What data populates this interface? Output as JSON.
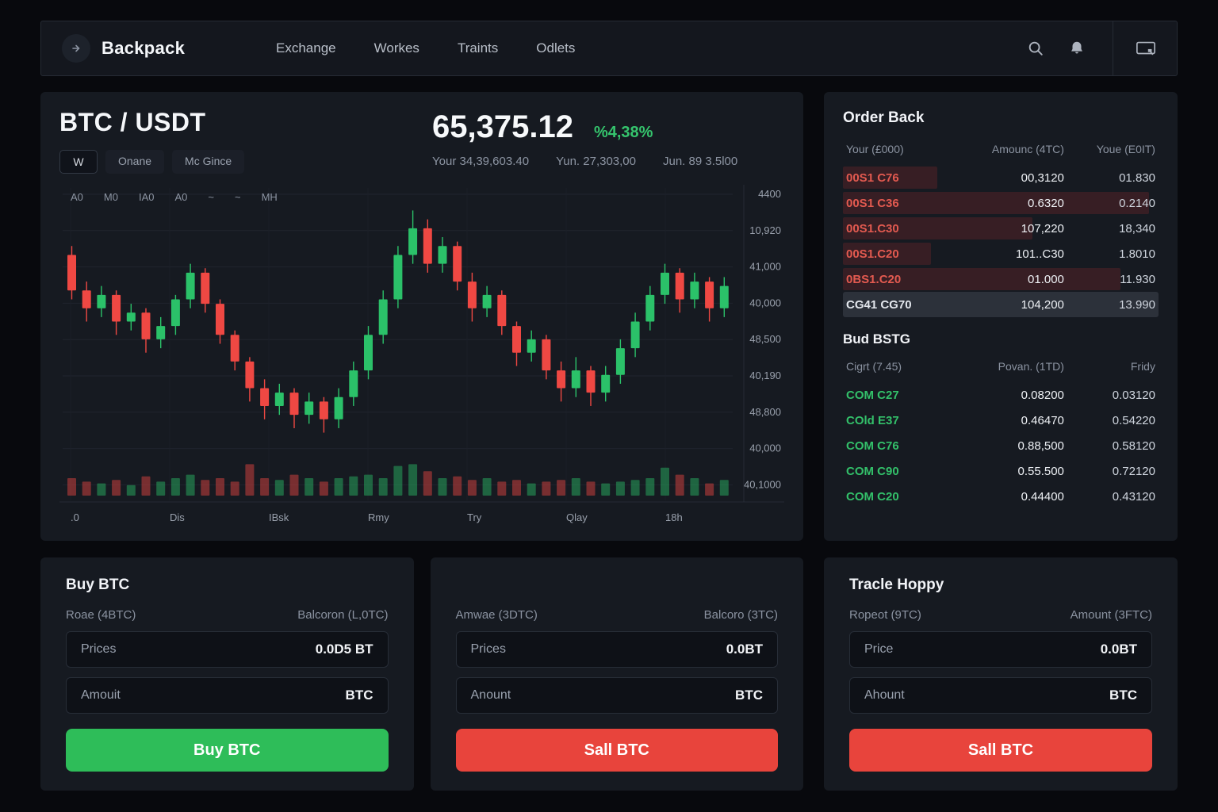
{
  "nav": {
    "brand": "Backpack",
    "items": [
      {
        "label": "Exchange"
      },
      {
        "label": "Workes"
      },
      {
        "label": "Traints"
      },
      {
        "label": "Odlets"
      }
    ]
  },
  "market": {
    "pair": "BTC / USDT",
    "price": "65,375.12",
    "change": "%4,38%",
    "stats": [
      "Your 34,39,603.40",
      "Yun. 27,303,00",
      "Jun. 89 3.5l00"
    ],
    "tabs": [
      "W",
      "Onane",
      "Mc Gince"
    ],
    "indicators": [
      "A0",
      "M0",
      "IA0",
      "A0",
      "~",
      "~",
      "MH"
    ]
  },
  "chart_data": {
    "type": "candlestick",
    "x_labels": [
      ".0",
      "Dis",
      "IBsk",
      "Rmy",
      "Try",
      "Qlay",
      "18h"
    ],
    "y_labels": [
      "4400",
      "10,920",
      "41,000",
      "40,000",
      "48,500",
      "40,190",
      "48,800",
      "40,000",
      "40,1000"
    ],
    "candles": [
      [
        78,
        70,
        80,
        68
      ],
      [
        70,
        66,
        72,
        63
      ],
      [
        66,
        69,
        71,
        64
      ],
      [
        69,
        63,
        70,
        60
      ],
      [
        63,
        65,
        67,
        61
      ],
      [
        65,
        59,
        66,
        56
      ],
      [
        59,
        62,
        64,
        57
      ],
      [
        62,
        68,
        69,
        60
      ],
      [
        68,
        74,
        76,
        66
      ],
      [
        74,
        67,
        75,
        65
      ],
      [
        67,
        60,
        68,
        58
      ],
      [
        60,
        54,
        61,
        52
      ],
      [
        54,
        48,
        55,
        45
      ],
      [
        48,
        44,
        50,
        41
      ],
      [
        44,
        47,
        49,
        42
      ],
      [
        47,
        42,
        48,
        39
      ],
      [
        42,
        45,
        47,
        40
      ],
      [
        45,
        41,
        46,
        38
      ],
      [
        41,
        46,
        48,
        39
      ],
      [
        46,
        52,
        54,
        44
      ],
      [
        52,
        60,
        62,
        50
      ],
      [
        60,
        68,
        70,
        58
      ],
      [
        68,
        78,
        80,
        66
      ],
      [
        78,
        84,
        88,
        76
      ],
      [
        84,
        76,
        86,
        74
      ],
      [
        76,
        80,
        82,
        74
      ],
      [
        80,
        72,
        81,
        70
      ],
      [
        72,
        66,
        74,
        63
      ],
      [
        66,
        69,
        71,
        64
      ],
      [
        69,
        62,
        70,
        60
      ],
      [
        62,
        56,
        63,
        53
      ],
      [
        56,
        59,
        61,
        54
      ],
      [
        59,
        52,
        60,
        50
      ],
      [
        52,
        48,
        54,
        45
      ],
      [
        48,
        52,
        55,
        46
      ],
      [
        52,
        47,
        53,
        44
      ],
      [
        47,
        51,
        53,
        45
      ],
      [
        51,
        57,
        59,
        49
      ],
      [
        57,
        63,
        65,
        55
      ],
      [
        63,
        69,
        71,
        61
      ],
      [
        69,
        74,
        76,
        67
      ],
      [
        74,
        68,
        75,
        65
      ],
      [
        68,
        72,
        74,
        66
      ],
      [
        72,
        66,
        73,
        63
      ],
      [
        66,
        71,
        73,
        64
      ]
    ],
    "volumes": [
      0.5,
      0.4,
      0.35,
      0.45,
      0.3,
      0.55,
      0.4,
      0.5,
      0.6,
      0.45,
      0.5,
      0.4,
      0.9,
      0.5,
      0.45,
      0.6,
      0.5,
      0.4,
      0.5,
      0.55,
      0.6,
      0.5,
      0.85,
      0.9,
      0.7,
      0.5,
      0.55,
      0.45,
      0.5,
      0.4,
      0.45,
      0.35,
      0.4,
      0.45,
      0.5,
      0.4,
      0.35,
      0.4,
      0.45,
      0.5,
      0.8,
      0.6,
      0.5,
      0.35,
      0.45
    ]
  },
  "order_book": {
    "title": "Order Back",
    "headers": [
      "Your (£000)",
      "Amounc (4TC)",
      "Youe (E0IT)"
    ],
    "asks": [
      {
        "price": "00S1 C76",
        "amount": "00,3120",
        "total": "01.830",
        "depth": 0.3
      },
      {
        "price": "00S1 C36",
        "amount": "0.6320",
        "total": "0.2140",
        "depth": 0.97
      },
      {
        "price": "00S1.C30",
        "amount": "107,220",
        "total": "18,340",
        "depth": 0.6
      },
      {
        "price": "00S1.C20",
        "amount": "101..C30",
        "total": "1.8010",
        "depth": 0.28
      },
      {
        "price": "0BS1.C20",
        "amount": "01.000",
        "total": "11.930",
        "depth": 0.88
      },
      {
        "price": "CG41 CG70",
        "amount": "104,200",
        "total": "13.990",
        "depth": 0,
        "highlight": true
      }
    ],
    "bids_title": "Bud BSTG",
    "bids_headers": [
      "Cigrt (7.45)",
      "Povan. (1TD)",
      "Fridy"
    ],
    "bids": [
      {
        "price": "COM C27",
        "amount": "0.08200",
        "total": "0.03120"
      },
      {
        "price": "COld E37",
        "amount": "0.46470",
        "total": "0.54220"
      },
      {
        "price": "COM C76",
        "amount": "0.88,500",
        "total": "0.58120"
      },
      {
        "price": "COM C90",
        "amount": "0.55.500",
        "total": "0.72120"
      },
      {
        "price": "COM C20",
        "amount": "0.44400",
        "total": "0.43120"
      }
    ]
  },
  "panels": [
    {
      "title": "Buy BTC",
      "label_left": "Roae (4BTC)",
      "label_right": "Balcoron (L,0TC)",
      "fields": [
        {
          "label": "Prices",
          "value": "0.0D5 BT"
        },
        {
          "label": "Amouit",
          "value": "BTC"
        }
      ],
      "button": "Buy BTC"
    },
    {
      "title": "",
      "label_left": "Amwae (3DTC)",
      "label_right": "Balcoro (3TC)",
      "fields": [
        {
          "label": "Prices",
          "value": "0.0BT"
        },
        {
          "label": "Anount",
          "value": "BTC"
        }
      ],
      "button": "Sall BTC"
    },
    {
      "title": "Tracle Hoppy",
      "label_left": "Ropeot (9TC)",
      "label_right": "Amount (3FTC)",
      "fields": [
        {
          "label": "Price",
          "value": "0.0BT"
        },
        {
          "label": "Ahount",
          "value": "BTC"
        }
      ],
      "button": "Sall BTC"
    }
  ],
  "colors": {
    "green": "#2bc169",
    "red": "#ef4843",
    "change_green": "#35c46d"
  }
}
